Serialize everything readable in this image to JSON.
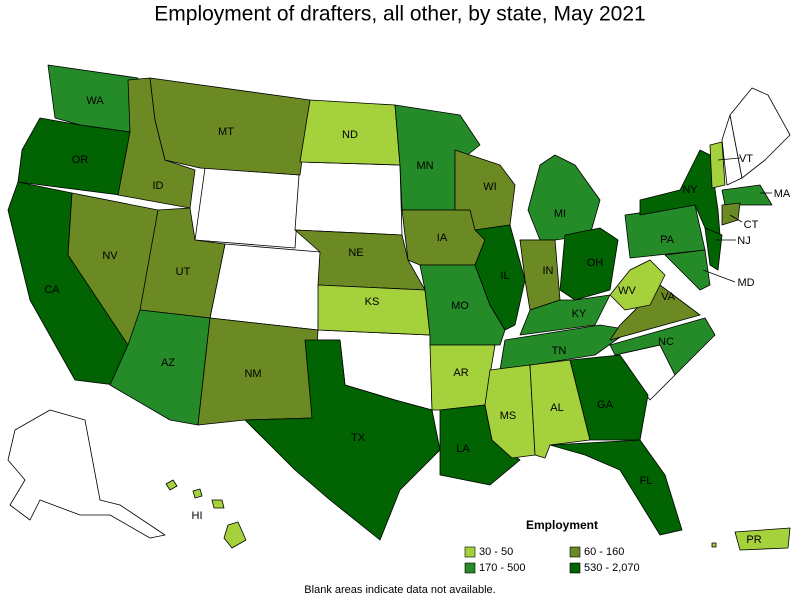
{
  "title": "Employment of drafters, all other, by state, May 2021",
  "legend": {
    "title": "Employment",
    "items": [
      {
        "label": "30 - 50",
        "color": "#a4d13c"
      },
      {
        "label": "60 - 160",
        "color": "#6b8a23"
      },
      {
        "label": "170 - 500",
        "color": "#258b28"
      },
      {
        "label": "530 - 2,070",
        "color": "#016301"
      }
    ]
  },
  "states": [
    {
      "label": "WA",
      "color": "#258b28"
    },
    {
      "label": "OR",
      "color": "#016301"
    },
    {
      "label": "CA",
      "color": "#016301"
    },
    {
      "label": "NV",
      "color": "#6b8a23"
    },
    {
      "label": "ID",
      "color": "#6b8a23"
    },
    {
      "label": "MT",
      "color": "#6b8a23"
    },
    {
      "label": "UT",
      "color": "#6b8a23"
    },
    {
      "label": "AZ",
      "color": "#258b28"
    },
    {
      "label": "NM",
      "color": "#6b8a23"
    },
    {
      "label": "ND",
      "color": "#a4d13c"
    },
    {
      "label": "NE",
      "color": "#6b8a23"
    },
    {
      "label": "KS",
      "color": "#a4d13c"
    },
    {
      "label": "TX",
      "color": "#016301"
    },
    {
      "label": "MN",
      "color": "#258b28"
    },
    {
      "label": "IA",
      "color": "#6b8a23"
    },
    {
      "label": "MO",
      "color": "#258b28"
    },
    {
      "label": "AR",
      "color": "#a4d13c"
    },
    {
      "label": "LA",
      "color": "#016301"
    },
    {
      "label": "WI",
      "color": "#6b8a23"
    },
    {
      "label": "IL",
      "color": "#016301"
    },
    {
      "label": "MI",
      "color": "#258b28"
    },
    {
      "label": "IN",
      "color": "#6b8a23"
    },
    {
      "label": "OH",
      "color": "#016301"
    },
    {
      "label": "KY",
      "color": "#258b28"
    },
    {
      "label": "TN",
      "color": "#258b28"
    },
    {
      "label": "MS",
      "color": "#a4d13c"
    },
    {
      "label": "AL",
      "color": "#a4d13c"
    },
    {
      "label": "GA",
      "color": "#016301"
    },
    {
      "label": "FL",
      "color": "#016301"
    },
    {
      "label": "NC",
      "color": "#258b28"
    },
    {
      "label": "VA",
      "color": "#6b8a23"
    },
    {
      "label": "WV",
      "color": "#a4d13c"
    },
    {
      "label": "PA",
      "color": "#258b28"
    },
    {
      "label": "NY",
      "color": "#016301"
    },
    {
      "label": "NJ",
      "color": "#016301"
    },
    {
      "label": "MD",
      "color": "#258b28"
    },
    {
      "label": "VT",
      "color": "#a4d13c"
    },
    {
      "label": "MA",
      "color": "#258b28"
    },
    {
      "label": "CT",
      "color": "#6b8a23"
    },
    {
      "label": "HI",
      "color": "#a4d13c"
    },
    {
      "label": "PR",
      "color": "#a4d13c"
    }
  ],
  "note": "Blank areas indicate data not available."
}
